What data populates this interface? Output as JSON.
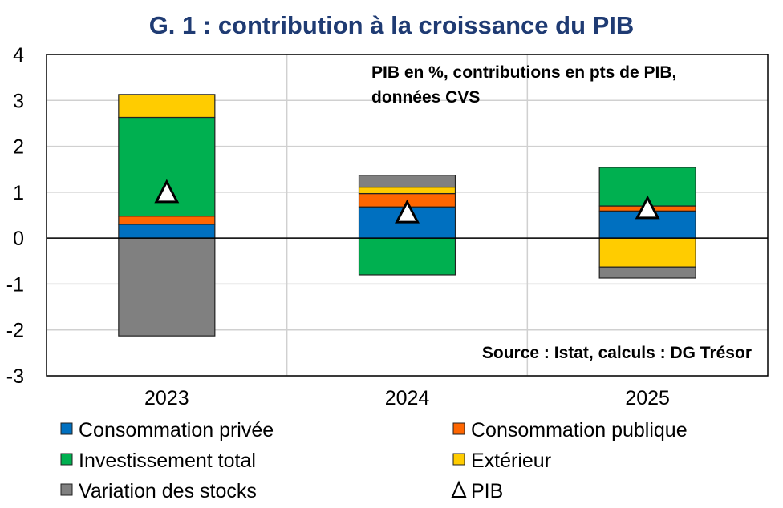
{
  "chart_data": {
    "type": "bar",
    "stacked": true,
    "title": "G. 1 : contribution à la croissance du PIB",
    "annotation_top": [
      "PIB en %, contributions en pts de PIB,",
      "données CVS"
    ],
    "annotation_source": "Source : Istat, calculs : DG Trésor",
    "categories": [
      "2023",
      "2024",
      "2025"
    ],
    "ylim": [
      -3,
      4
    ],
    "yticks": [
      -3,
      -2,
      -1,
      0,
      1,
      2,
      3,
      4
    ],
    "grid": true,
    "legend_position": "bottom",
    "series": [
      {
        "name": "Consommation privée",
        "color": "#0070C0",
        "values": [
          0.3,
          0.68,
          0.59
        ]
      },
      {
        "name": "Consommation publique",
        "color": "#FF6600",
        "values": [
          0.18,
          0.29,
          0.11
        ]
      },
      {
        "name": "Investissement total",
        "color": "#00B050",
        "values": [
          2.15,
          -0.8,
          0.84
        ]
      },
      {
        "name": "Extérieur",
        "color": "#FFCC00",
        "values": [
          0.5,
          0.14,
          -0.63
        ]
      },
      {
        "name": "Variation des stocks",
        "color": "#808080",
        "values": [
          -2.13,
          0.26,
          -0.24
        ]
      }
    ],
    "markers": {
      "name": "PIB",
      "symbol": "triangle",
      "values": [
        1.0,
        0.56,
        0.65
      ]
    }
  },
  "colors": {
    "title": "#1F3B73"
  }
}
